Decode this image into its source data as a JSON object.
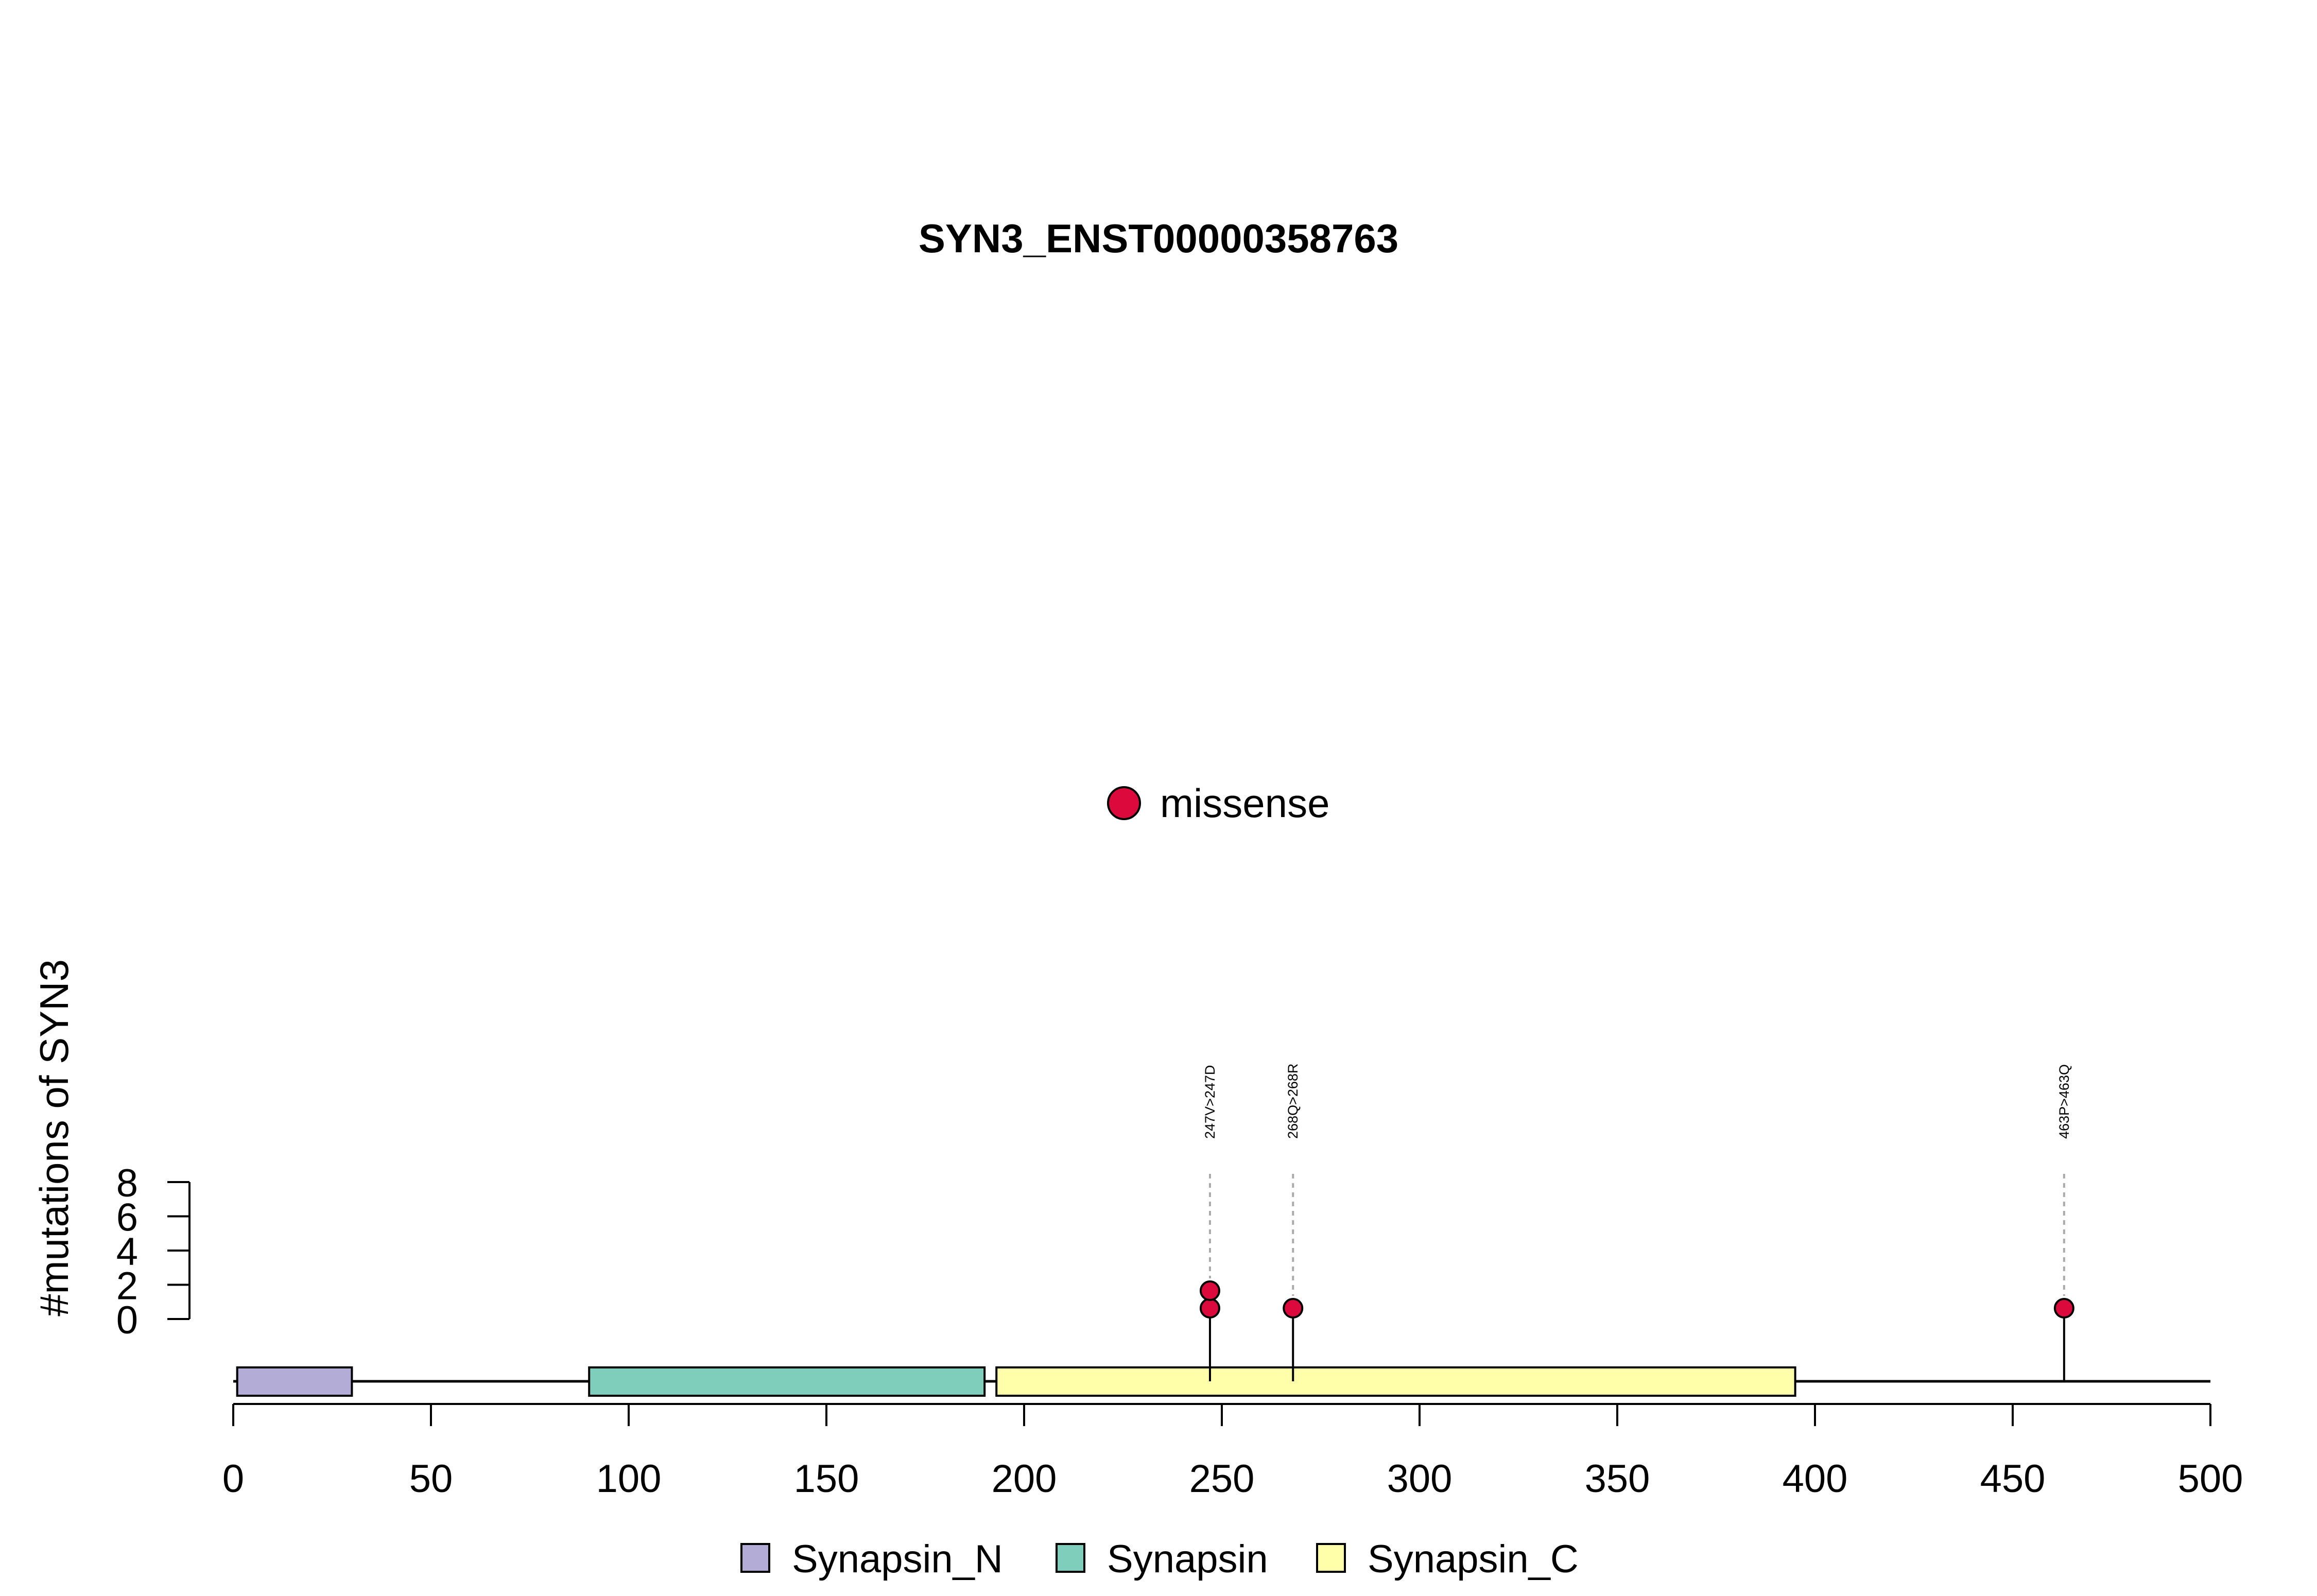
{
  "chart_data": {
    "type": "lollipop",
    "title": "SYN3_ENST00000358763",
    "ylabel": "#mutations of SYN3",
    "xlabel": "",
    "xlim": [
      0,
      500
    ],
    "x_ticks": [
      0,
      50,
      100,
      150,
      200,
      250,
      300,
      350,
      400,
      450,
      500
    ],
    "x_tick_labels": [
      "0",
      "50",
      "100",
      "150",
      "200",
      "250",
      "300",
      "350",
      "400",
      "450",
      "500"
    ],
    "ylim": [
      0,
      8
    ],
    "y_ticks": [
      0,
      2,
      4,
      6,
      8
    ],
    "y_tick_labels": [
      "0",
      "2",
      "4",
      "6",
      "8"
    ],
    "protein_length": 500,
    "mutation_legend": [
      {
        "label": "missense",
        "color": "#DC0A3C"
      }
    ],
    "domains": [
      {
        "name": "Synapsin_N",
        "start": 1,
        "end": 30,
        "color": "#B3ACD6"
      },
      {
        "name": "Synapsin",
        "start": 90,
        "end": 190,
        "color": "#7FCDBB"
      },
      {
        "name": "Synapsin_C",
        "start": 193,
        "end": 395,
        "color": "#FFFFAA"
      }
    ],
    "domain_legend": [
      {
        "label": "Synapsin_N",
        "color": "#B3ACD6"
      },
      {
        "label": "Synapsin",
        "color": "#7FCDBB"
      },
      {
        "label": "Synapsin_C",
        "color": "#FFFFAA"
      }
    ],
    "mutations": [
      {
        "position": 247,
        "count": 2,
        "label": "247V>247D",
        "type": "missense"
      },
      {
        "position": 268,
        "count": 1,
        "label": "268Q>268R",
        "type": "missense"
      },
      {
        "position": 463,
        "count": 1,
        "label": "463P>463Q",
        "type": "missense"
      }
    ]
  }
}
